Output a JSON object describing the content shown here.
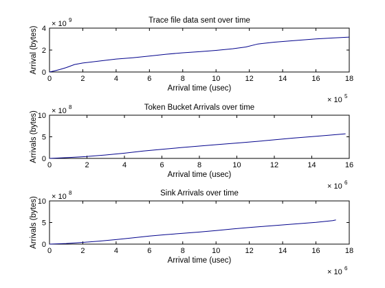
{
  "chart_data": [
    {
      "type": "line",
      "title": "Trace file data sent over time",
      "xlabel": "Arrival time (usec)",
      "ylabel": "Arrival (bytes)",
      "x_multiplier_base": "× 10",
      "x_multiplier_exp": "5",
      "y_multiplier_base": "× 10",
      "y_multiplier_exp": "9",
      "xlim": [
        0,
        18
      ],
      "ylim": [
        0,
        4
      ],
      "xticks": [
        0,
        2,
        4,
        6,
        8,
        10,
        12,
        14,
        16,
        18
      ],
      "yticks": [
        0,
        2,
        4
      ],
      "line_color": "#00008b",
      "series": [
        {
          "x": [
            0,
            0.3,
            0.6,
            1.0,
            1.5,
            2.0,
            3.0,
            4.0,
            5.0,
            6.0,
            7.0,
            8.0,
            9.0,
            10.0,
            11.0,
            11.8,
            12.5,
            13.5,
            15.0,
            16.0,
            17.0,
            18.0
          ],
          "y": [
            0.0,
            0.1,
            0.22,
            0.4,
            0.68,
            0.82,
            1.0,
            1.18,
            1.3,
            1.45,
            1.62,
            1.75,
            1.85,
            1.97,
            2.12,
            2.28,
            2.55,
            2.72,
            2.9,
            3.02,
            3.1,
            3.18
          ]
        }
      ]
    },
    {
      "type": "line",
      "title": "Token Bucket Arrivals over time",
      "xlabel": "Arrival time (usec)",
      "ylabel": "Arrivals (bytes)",
      "x_multiplier_base": "× 10",
      "x_multiplier_exp": "6",
      "y_multiplier_base": "× 10",
      "y_multiplier_exp": "8",
      "xlim": [
        0,
        16
      ],
      "ylim": [
        0,
        10
      ],
      "xticks": [
        0,
        2,
        4,
        6,
        8,
        10,
        12,
        14,
        16
      ],
      "yticks": [
        0,
        5,
        10
      ],
      "line_color": "#00008b",
      "series": [
        {
          "x": [
            0,
            1,
            2,
            3,
            4,
            5,
            6,
            7,
            8,
            9,
            10,
            11,
            12,
            13,
            14,
            15,
            15.8
          ],
          "y": [
            0.0,
            0.2,
            0.45,
            0.8,
            1.2,
            1.7,
            2.1,
            2.5,
            2.85,
            3.2,
            3.55,
            3.9,
            4.3,
            4.7,
            5.05,
            5.4,
            5.7
          ]
        }
      ]
    },
    {
      "type": "line",
      "title": "Sink Arrivals over time",
      "xlabel": "Arrival time (usec)",
      "ylabel": "Arrivals (bytes)",
      "x_multiplier_base": "× 10",
      "x_multiplier_exp": "6",
      "y_multiplier_base": "× 10",
      "y_multiplier_exp": "8",
      "xlim": [
        0,
        18
      ],
      "ylim": [
        0,
        10
      ],
      "xticks": [
        0,
        2,
        4,
        6,
        8,
        10,
        12,
        14,
        16,
        18
      ],
      "yticks": [
        0,
        5,
        10
      ],
      "line_color": "#00008b",
      "series": [
        {
          "x": [
            0,
            1,
            2,
            3,
            4,
            5,
            6,
            7,
            8,
            9,
            10,
            11,
            12,
            13,
            14,
            15,
            16,
            17,
            17.2
          ],
          "y": [
            0.0,
            0.15,
            0.4,
            0.7,
            1.05,
            1.45,
            1.85,
            2.2,
            2.5,
            2.8,
            3.15,
            3.5,
            3.85,
            4.15,
            4.45,
            4.75,
            5.05,
            5.45,
            5.6
          ]
        }
      ]
    }
  ]
}
